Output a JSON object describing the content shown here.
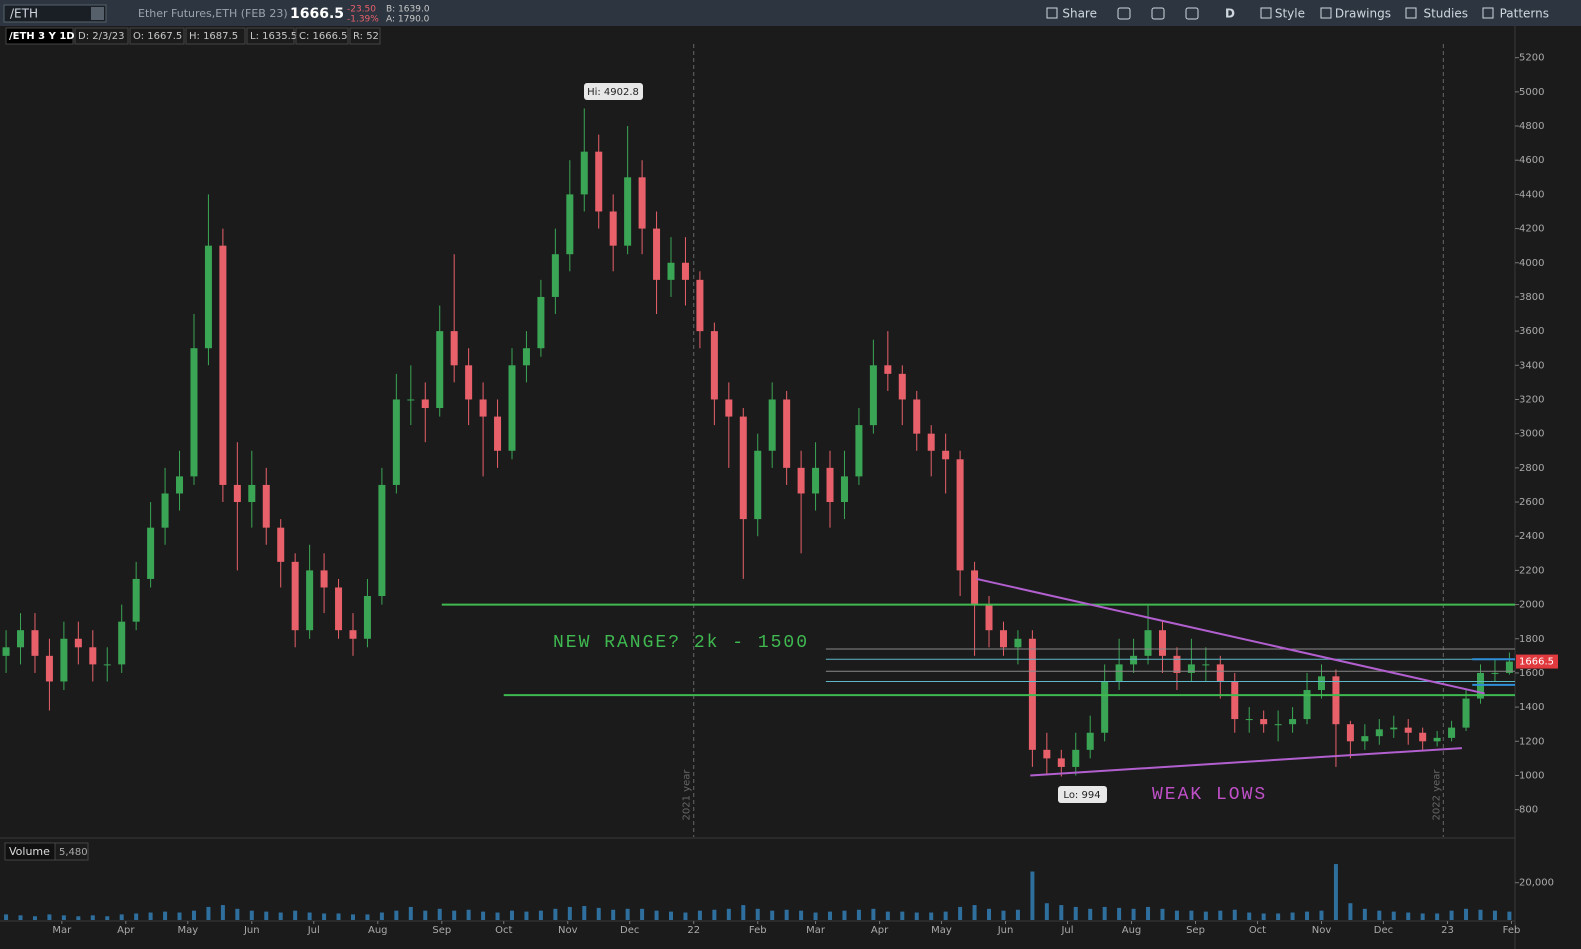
{
  "toolbar": {
    "symbol": "/ETH",
    "description": "Ether Futures,ETH (FEB 23)",
    "last": "1666.5",
    "change": "-23.50",
    "change_pct": "-1.39%",
    "bid": "B: 1639.0",
    "ask": "A: 1790.0",
    "aggregation": "D",
    "buttons": [
      "Share",
      "Style",
      "Drawings",
      "Studies",
      "Patterns"
    ]
  },
  "info_bar": [
    "/ETH 3 Y 1D",
    "D: 2/3/23",
    "O: 1667.5",
    "H: 1687.5",
    "L: 1635.5",
    "C: 1666.5",
    "R: 52"
  ],
  "chart_data": {
    "type": "candlestick",
    "up_color": "#3aa655",
    "down_color": "#e8606a",
    "x": [
      1,
      8,
      15,
      22,
      29,
      36,
      43,
      50,
      57,
      64,
      71,
      78,
      85,
      92,
      99,
      106,
      113,
      120,
      127,
      134,
      141,
      148,
      155,
      162,
      169,
      176,
      183,
      190,
      197,
      204,
      211,
      218,
      225,
      232,
      239,
      246,
      253,
      260,
      267,
      274,
      281,
      288,
      295,
      302,
      309,
      316,
      323,
      330,
      337,
      344,
      351,
      358,
      365,
      372,
      379,
      386,
      393,
      400,
      407,
      414,
      421,
      428,
      435,
      442,
      449,
      456,
      463,
      470,
      477,
      484,
      491,
      498,
      505,
      512,
      519,
      526,
      533,
      540,
      547,
      554,
      561,
      568,
      575,
      582,
      589,
      596,
      603,
      610,
      617,
      624,
      631,
      638,
      645,
      652,
      659,
      666,
      673,
      680,
      687,
      694,
      701,
      708,
      715,
      722,
      729
    ],
    "open": [
      1700,
      1750,
      1850,
      1700,
      1550,
      1800,
      1750,
      1650,
      1650,
      1900,
      2150,
      2450,
      2650,
      2750,
      3500,
      4100,
      2700,
      2600,
      2700,
      2450,
      2250,
      1850,
      2200,
      2100,
      1850,
      1800,
      2050,
      2700,
      3200,
      3200,
      3150,
      3600,
      3400,
      3200,
      3100,
      2900,
      3400,
      3500,
      3800,
      4050,
      4400,
      4650,
      4300,
      4100,
      4500,
      4200,
      3900,
      4000,
      3900,
      3600,
      3200,
      3100,
      2500,
      2900,
      3200,
      2800,
      2650,
      2800,
      2600,
      2750,
      3050,
      3400,
      3350,
      3200,
      3000,
      2900,
      2850,
      2200,
      2000,
      1850,
      1750,
      1800,
      1150,
      1100,
      1050,
      1150,
      1250,
      1550,
      1650,
      1700,
      1850,
      1700,
      1600,
      1650,
      1650,
      1550,
      1330,
      1330,
      1300,
      1300,
      1330,
      1500,
      1580,
      1300,
      1200,
      1230,
      1270,
      1280,
      1250,
      1200,
      1220,
      1280,
      1450,
      1600,
      1600
    ],
    "high": [
      1850,
      1950,
      1950,
      1800,
      1900,
      1900,
      1850,
      1750,
      2000,
      2250,
      2600,
      2800,
      2900,
      3700,
      4400,
      4200,
      2950,
      2900,
      2800,
      2500,
      2300,
      2350,
      2300,
      2150,
      1950,
      2150,
      2800,
      3350,
      3400,
      3300,
      3750,
      4050,
      3500,
      3300,
      3200,
      3500,
      3600,
      3900,
      4200,
      4600,
      4902.8,
      4750,
      4400,
      4800,
      4600,
      4300,
      4150,
      4150,
      3950,
      3650,
      3300,
      3150,
      3000,
      3300,
      3250,
      2900,
      2950,
      2900,
      2900,
      3150,
      3550,
      3600,
      3400,
      3250,
      3050,
      3000,
      2900,
      2250,
      2050,
      1900,
      1850,
      1850,
      1250,
      1150,
      1250,
      1350,
      1650,
      1800,
      1800,
      2000,
      1900,
      1750,
      1800,
      1750,
      1700,
      1600,
      1400,
      1380,
      1380,
      1400,
      1600,
      1650,
      1620,
      1320,
      1300,
      1330,
      1350,
      1330,
      1280,
      1260,
      1320,
      1500,
      1650,
      1680,
      1720
    ],
    "low": [
      1600,
      1650,
      1600,
      1380,
      1500,
      1650,
      1550,
      1550,
      1600,
      1850,
      2100,
      2350,
      2550,
      2700,
      3400,
      2600,
      2200,
      2450,
      2350,
      2100,
      1750,
      1800,
      1950,
      1800,
      1700,
      1750,
      2000,
      2650,
      3050,
      2950,
      3100,
      3300,
      3050,
      2750,
      2800,
      2850,
      3300,
      3450,
      3700,
      3950,
      4300,
      4200,
      3950,
      4050,
      4050,
      3700,
      3800,
      3750,
      3500,
      3050,
      2800,
      2150,
      2400,
      2800,
      2700,
      2300,
      2550,
      2450,
      2500,
      2700,
      3000,
      3250,
      3050,
      2900,
      2750,
      2650,
      2050,
      1700,
      1750,
      1700,
      1650,
      1050,
      1000,
      994,
      1000,
      1100,
      1200,
      1500,
      1600,
      1650,
      1600,
      1500,
      1550,
      1550,
      1450,
      1250,
      1250,
      1250,
      1200,
      1250,
      1300,
      1450,
      1050,
      1100,
      1150,
      1180,
      1220,
      1180,
      1150,
      1170,
      1200,
      1260,
      1420,
      1550,
      1590
    ],
    "close": [
      1750,
      1850,
      1700,
      1550,
      1800,
      1750,
      1650,
      1650,
      1900,
      2150,
      2450,
      2650,
      2750,
      3500,
      4100,
      2700,
      2600,
      2700,
      2450,
      2250,
      1850,
      2200,
      2100,
      1850,
      1800,
      2050,
      2700,
      3200,
      3200,
      3150,
      3600,
      3400,
      3200,
      3100,
      2900,
      3400,
      3500,
      3800,
      4050,
      4400,
      4650,
      4300,
      4100,
      4500,
      4200,
      3900,
      4000,
      3900,
      3600,
      3200,
      3100,
      2500,
      2900,
      3200,
      2800,
      2650,
      2800,
      2600,
      2750,
      3050,
      3400,
      3350,
      3200,
      3000,
      2900,
      2850,
      2200,
      2000,
      1850,
      1750,
      1800,
      1150,
      1100,
      1050,
      1150,
      1250,
      1550,
      1650,
      1700,
      1850,
      1700,
      1600,
      1650,
      1650,
      1550,
      1330,
      1330,
      1300,
      1300,
      1330,
      1500,
      1580,
      1300,
      1200,
      1230,
      1270,
      1280,
      1250,
      1200,
      1220,
      1280,
      1450,
      1600,
      1600,
      1666.5
    ],
    "xlim": [
      0,
      732
    ],
    "xticks": [
      {
        "value": 28,
        "label": "Mar"
      },
      {
        "value": 59,
        "label": "Apr"
      },
      {
        "value": 89,
        "label": "May"
      },
      {
        "value": 120,
        "label": "Jun"
      },
      {
        "value": 150,
        "label": "Jul"
      },
      {
        "value": 181,
        "label": "Aug"
      },
      {
        "value": 212,
        "label": "Sep"
      },
      {
        "value": 242,
        "label": "Oct"
      },
      {
        "value": 273,
        "label": "Nov"
      },
      {
        "value": 303,
        "label": "Dec"
      },
      {
        "value": 334,
        "label": "22"
      },
      {
        "value": 365,
        "label": "Feb"
      },
      {
        "value": 393,
        "label": "Mar"
      },
      {
        "value": 424,
        "label": "Apr"
      },
      {
        "value": 454,
        "label": "May"
      },
      {
        "value": 485,
        "label": "Jun"
      },
      {
        "value": 515,
        "label": "Jul"
      },
      {
        "value": 546,
        "label": "Aug"
      },
      {
        "value": 577,
        "label": "Sep"
      },
      {
        "value": 607,
        "label": "Oct"
      },
      {
        "value": 638,
        "label": "Nov"
      },
      {
        "value": 668,
        "label": "Dec"
      },
      {
        "value": 699,
        "label": "23"
      },
      {
        "value": 730,
        "label": "Feb"
      }
    ],
    "ylim": [
      640,
      5280
    ],
    "yticks": [
      800,
      1000,
      1200,
      1400,
      1600,
      1800,
      2000,
      2200,
      2400,
      2600,
      2800,
      3000,
      3200,
      3400,
      3600,
      3800,
      4000,
      4200,
      4400,
      4600,
      4800,
      5000,
      5200
    ],
    "grid": false,
    "last_price": 1666.5,
    "year_lines": [
      {
        "value": 334,
        "label": "2021 year"
      },
      {
        "value": 697,
        "label": "2022 year"
      }
    ],
    "hlines": [
      {
        "value": 2000,
        "from": 212,
        "color": "#3fb950",
        "width": 2
      },
      {
        "value": 1470,
        "from": 242,
        "color": "#3fb950",
        "width": 2
      },
      {
        "value": 1740,
        "from": 398,
        "color": "#8a8a8a",
        "width": 1
      },
      {
        "value": 1680,
        "from": 398,
        "color": "#5fb8c8",
        "width": 1
      },
      {
        "value": 1610,
        "from": 398,
        "color": "#8a8a8a",
        "width": 1
      },
      {
        "value": 1550,
        "from": 398,
        "color": "#5fb8c8",
        "width": 1
      },
      {
        "value": 1680,
        "from": 711,
        "color": "#2f8fd8",
        "width": 2
      },
      {
        "value": 1530,
        "from": 711,
        "color": "#2f8fd8",
        "width": 2
      }
    ],
    "trendlines": [
      {
        "x": [
          471,
          717
        ],
        "y": [
          2150,
          1480
        ],
        "color": "#b25fcf"
      },
      {
        "x": [
          497,
          706
        ],
        "y": [
          1000,
          1160
        ],
        "color": "#b25fcf"
      }
    ],
    "annotations": {
      "range": "NEW RANGE? 2k - 1500",
      "weak": "WEAK LOWS",
      "hi": "Hi: 4902.8",
      "lo": "Lo: 994"
    },
    "volume": {
      "label": "Volume",
      "current": "5,480",
      "color": "#2e6f9e",
      "values": [
        3000,
        2500,
        2000,
        3000,
        2500,
        2000,
        2500,
        2000,
        3000,
        3500,
        4000,
        4500,
        4000,
        5000,
        7000,
        8000,
        6000,
        5000,
        4500,
        4000,
        5000,
        4000,
        3500,
        3500,
        3000,
        3000,
        4000,
        5000,
        7000,
        5000,
        6000,
        5000,
        5500,
        4500,
        4000,
        5000,
        4500,
        5000,
        6000,
        7000,
        7500,
        6500,
        5500,
        6000,
        6000,
        5000,
        4500,
        4000,
        5000,
        5500,
        6000,
        8000,
        6000,
        5000,
        5500,
        5000,
        4000,
        4500,
        5000,
        5500,
        6000,
        4500,
        4500,
        4000,
        4000,
        4500,
        7000,
        8000,
        6000,
        5000,
        5500,
        26000,
        9000,
        8000,
        7000,
        6000,
        7000,
        6500,
        6000,
        7000,
        6000,
        5000,
        5000,
        4500,
        5000,
        5500,
        4000,
        3500,
        3500,
        4000,
        4500,
        5000,
        30000,
        9000,
        6000,
        5000,
        4500,
        4000,
        3500,
        3500,
        5000,
        6000,
        5500,
        5000,
        4500
      ],
      "ylim": [
        0,
        31100
      ],
      "yticks": [
        {
          "value": 20000,
          "label": "20,000"
        }
      ]
    }
  }
}
